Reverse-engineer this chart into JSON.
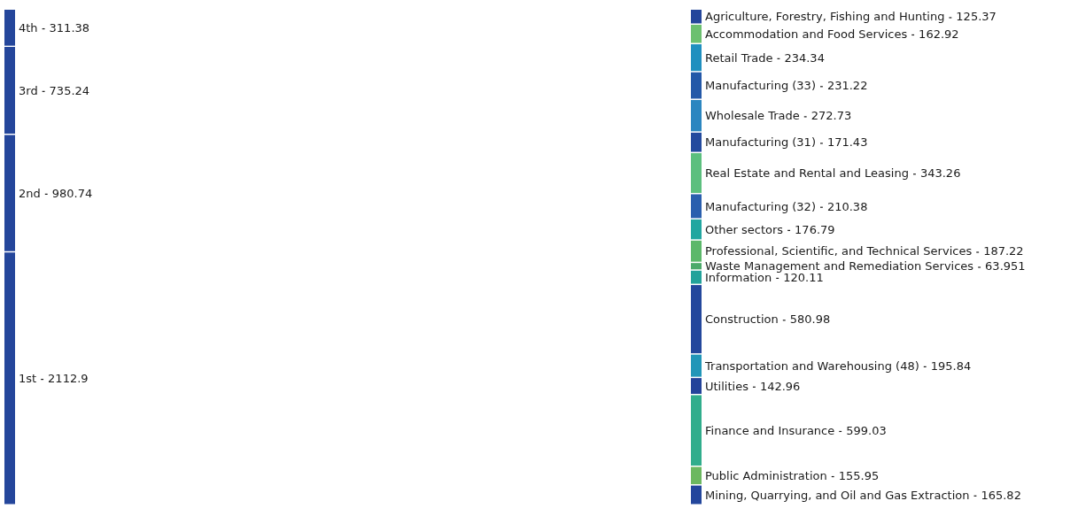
{
  "chart_data": [
    {
      "type": "other",
      "data_labels": true,
      "categories": [
        "4th",
        "3rd",
        "2nd",
        "1st"
      ],
      "values": [
        311.38,
        735.24,
        980.74,
        2112.9
      ],
      "colors": [
        "#24469b",
        "#24469b",
        "#24469b",
        "#24469b"
      ]
    },
    {
      "type": "other",
      "data_labels": true,
      "categories": [
        "Agriculture, Forestry, Fishing and Hunting",
        "Accommodation and Food Services",
        "Retail Trade",
        "Manufacturing (33)",
        "Wholesale Trade",
        "Manufacturing (31)",
        "Real Estate and Rental and Leasing",
        "Manufacturing (32)",
        "Other sectors",
        "Professional, Scientific, and Technical Services",
        "Waste Management and Remediation Services",
        "Information",
        "Construction",
        "Transportation and Warehousing (48)",
        "Utilities",
        "Finance and Insurance",
        "Public Administration",
        "Mining, Quarrying, and Oil and Gas Extraction"
      ],
      "values": [
        125.37,
        162.92,
        234.34,
        231.22,
        272.73,
        171.43,
        343.26,
        210.38,
        176.79,
        187.22,
        63.951,
        120.11,
        580.98,
        195.84,
        142.96,
        599.03,
        155.95,
        165.82
      ],
      "colors": [
        "#24469b",
        "#6cc070",
        "#1f8fbf",
        "#2358a8",
        "#2b86c0",
        "#234a9e",
        "#5cbf7e",
        "#2a5fae",
        "#21a6a0",
        "#5cb86a",
        "#4caa6a",
        "#22a29a",
        "#23479c",
        "#2196b8",
        "#23439a",
        "#30ad8c",
        "#6cb860",
        "#23469c"
      ]
    }
  ]
}
